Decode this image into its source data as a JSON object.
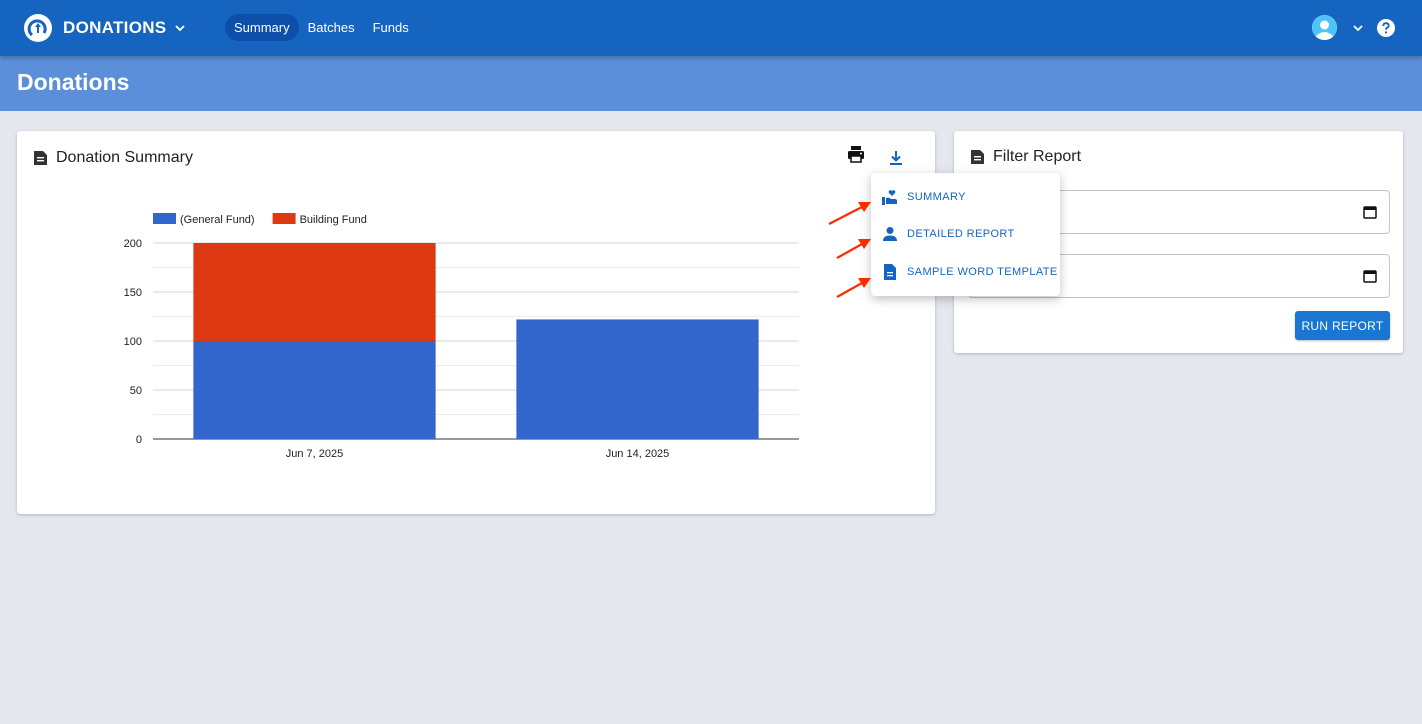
{
  "app": {
    "brand": "DONATIONS",
    "nav": [
      {
        "label": "Summary",
        "active": true
      },
      {
        "label": "Batches",
        "active": false
      },
      {
        "label": "Funds",
        "active": false
      }
    ],
    "icons": {
      "logo": "church-logo-icon",
      "user": "user-avatar-icon",
      "help": "help-icon"
    }
  },
  "page": {
    "title": "Donations"
  },
  "summary_card": {
    "title": "Donation Summary",
    "icons": {
      "title": "document-icon",
      "print": "print-icon",
      "download": "download-icon"
    }
  },
  "download_menu": {
    "items": [
      {
        "label": "SUMMARY",
        "icon": "donation-hand-icon"
      },
      {
        "label": "DETAILED REPORT",
        "icon": "person-icon"
      },
      {
        "label": "SAMPLE WORD TEMPLATE",
        "icon": "document-icon"
      }
    ]
  },
  "filter_card": {
    "title": "Filter Report",
    "start_date": "",
    "end_date": "",
    "run_button": "RUN REPORT"
  },
  "colors": {
    "primary": "#1565c0",
    "general_fund": "#3366cc",
    "building_fund": "#dc3912",
    "band": "#5b8fd9"
  },
  "chart_data": {
    "type": "bar",
    "stacked": true,
    "categories": [
      "Jun 7, 2025",
      "Jun 14, 2025"
    ],
    "series": [
      {
        "name": "(General Fund)",
        "values": [
          100,
          122
        ],
        "color": "#3366cc"
      },
      {
        "name": "Building Fund",
        "values": [
          100,
          0
        ],
        "color": "#dc3912"
      }
    ],
    "yticks": [
      0,
      50,
      100,
      150,
      200
    ],
    "ylim": [
      0,
      200
    ],
    "legend": "top-left",
    "grid": true,
    "title": "",
    "xlabel": "",
    "ylabel": ""
  }
}
